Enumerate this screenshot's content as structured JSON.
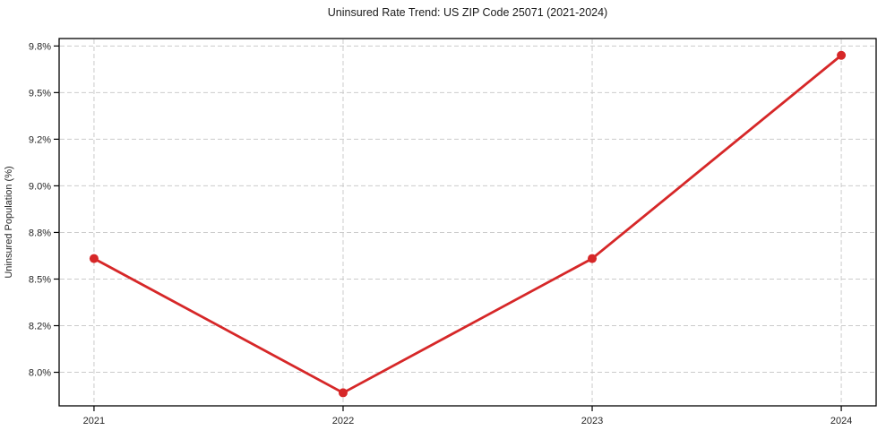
{
  "chart_data": {
    "type": "line",
    "title": "Uninsured Rate Trend: US ZIP Code 25071 (2021-2024)",
    "xlabel": "",
    "ylabel": "Uninsured Population (%)",
    "x": [
      2021,
      2022,
      2023,
      2024
    ],
    "series": [
      {
        "name": "Uninsured rate",
        "values": [
          8.61,
          7.89,
          8.61,
          9.7
        ],
        "color": "#d62728",
        "marker": "circle",
        "marker_radius": 5,
        "line_width": 2.8
      }
    ],
    "xticks": {
      "values": [
        2021,
        2022,
        2023,
        2024
      ],
      "labels": [
        "2021",
        "2022",
        "2023",
        "2024"
      ]
    },
    "yticks": {
      "values": [
        8.0,
        8.25,
        8.5,
        8.75,
        9.0,
        9.25,
        9.5,
        9.75
      ],
      "labels": [
        "8.0%",
        "8.2%",
        "8.5%",
        "8.8%",
        "9.0%",
        "9.2%",
        "9.5%",
        "9.8%"
      ]
    },
    "xlim": [
      2020.86,
      2024.14
    ],
    "ylim": [
      7.82,
      9.79
    ],
    "grid": true,
    "grid_color": "#cbcbcb",
    "grid_style": "dashed",
    "axis_color": "#000000",
    "tick_color": "#262626",
    "background": "#ffffff",
    "legend": "none"
  }
}
